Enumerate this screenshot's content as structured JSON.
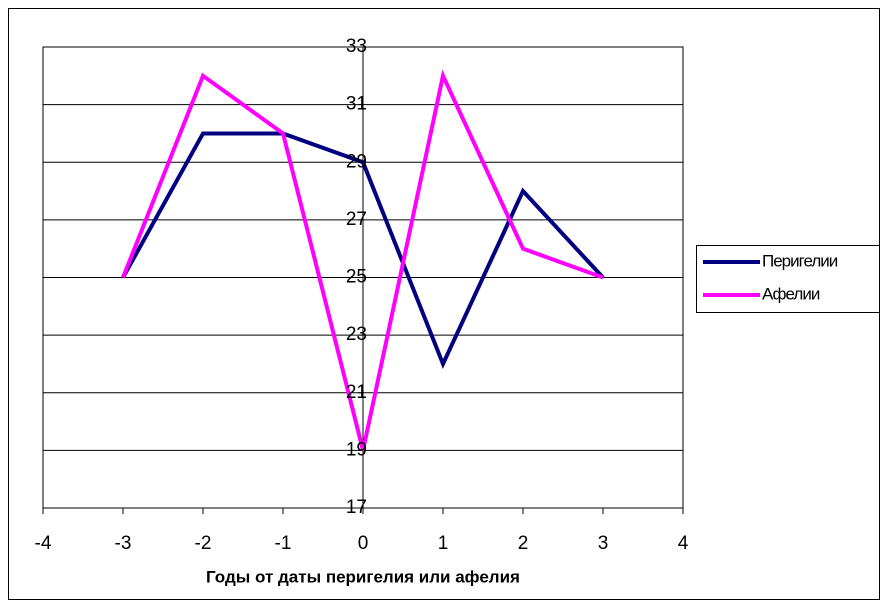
{
  "chart_data": {
    "type": "line",
    "x_label": "Годы от даты перигелия или афелия",
    "x": [
      -3,
      -2,
      -1,
      0,
      1,
      2,
      3
    ],
    "series": [
      {
        "name": "Перигелии",
        "color": "#000080",
        "values": [
          25,
          30,
          30,
          29,
          22,
          28,
          25
        ]
      },
      {
        "name": "Афелии",
        "color": "#ff00ff",
        "values": [
          25,
          32,
          30,
          19,
          32,
          26,
          25
        ]
      }
    ],
    "xlim": [
      -4,
      4
    ],
    "xticks": [
      -4,
      -3,
      -2,
      -1,
      0,
      1,
      2,
      3,
      4
    ],
    "ylim": [
      17,
      33
    ],
    "yticks": [
      17,
      19,
      21,
      23,
      25,
      27,
      29,
      31,
      33
    ],
    "grid": true,
    "legend": "right"
  }
}
